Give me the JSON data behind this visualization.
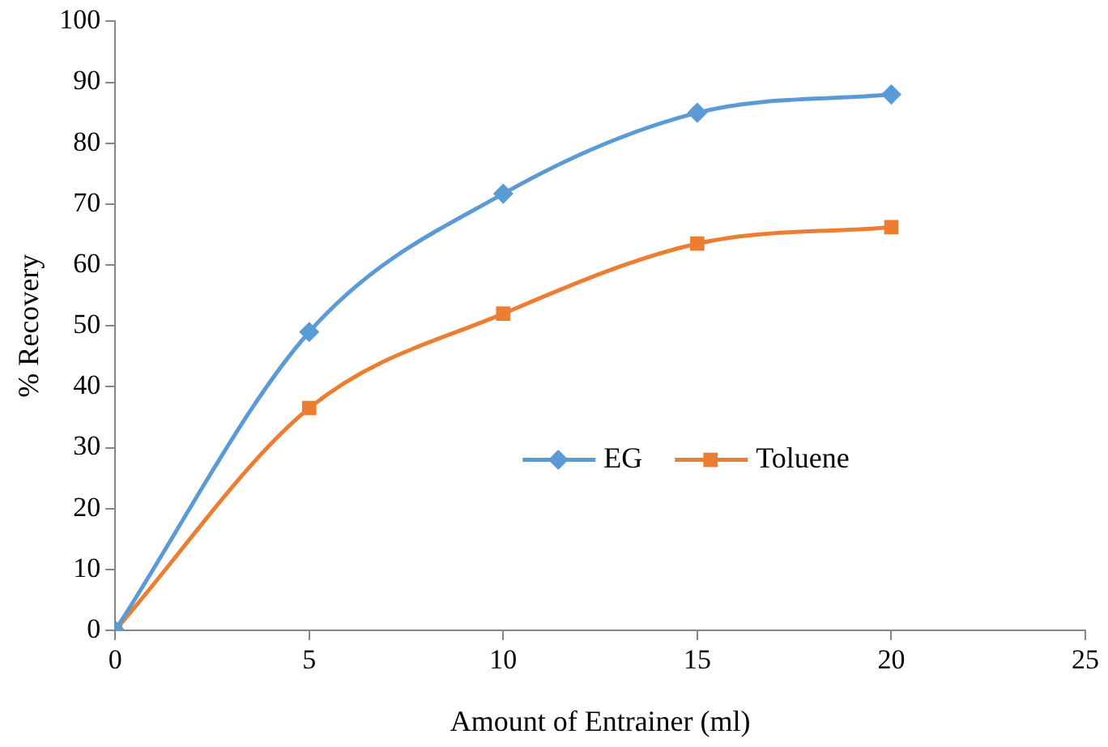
{
  "chart_data": {
    "type": "line",
    "xlabel": "Amount of Entrainer (ml)",
    "ylabel": "% Recovery",
    "x": [
      0,
      5,
      10,
      15,
      20
    ],
    "xlim": [
      0,
      25
    ],
    "xticks": [
      0,
      5,
      10,
      15,
      20,
      25
    ],
    "ylim": [
      0,
      100
    ],
    "yticks": [
      0,
      10,
      20,
      30,
      40,
      50,
      60,
      70,
      80,
      90,
      100
    ],
    "grid": false,
    "legend": "right",
    "series": [
      {
        "name": "EG",
        "color": "#5b9bd5",
        "marker": "diamond",
        "values": [
          0,
          49,
          71.7,
          85,
          88
        ]
      },
      {
        "name": "Toluene",
        "color": "#ed7d31",
        "marker": "square",
        "values": [
          0,
          36.5,
          52,
          63.5,
          66.2
        ]
      }
    ]
  }
}
